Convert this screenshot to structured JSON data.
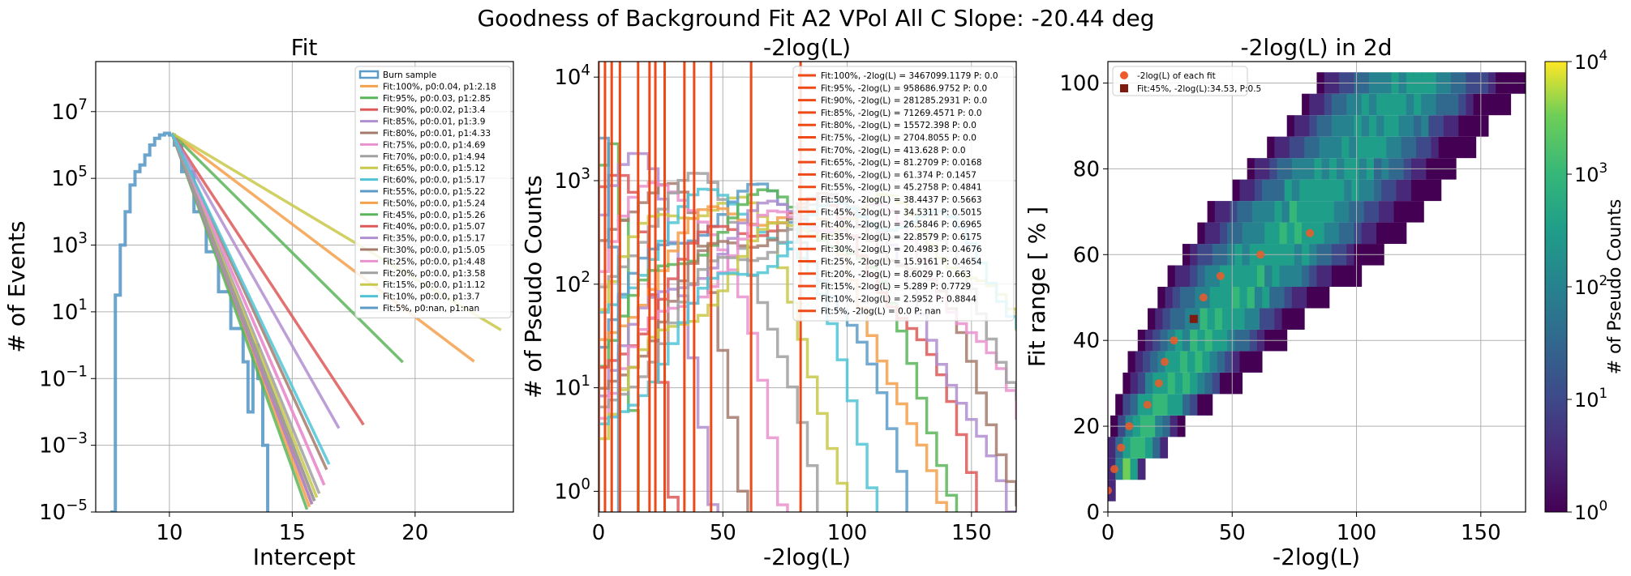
{
  "suptitle": "Goodness of Background Fit A2 VPol All C Slope: -20.44 deg",
  "colors": {
    "burn": "#5b9bc8",
    "cycle": [
      "#f5a04b",
      "#5ab55a",
      "#dd5858",
      "#b08ed0",
      "#a57b6c",
      "#ea92cf",
      "#a0a0a0",
      "#c8c84a",
      "#50c4d6",
      "#5b9bc8",
      "#f5a04b",
      "#5ab55a",
      "#dd5858",
      "#b08ed0",
      "#a57b6c",
      "#ea92cf",
      "#a0a0a0",
      "#c8c84a",
      "#50c4d6",
      "#5b9bc8"
    ],
    "fit_line": "#ee4a18",
    "scatter": "#f05a28",
    "highlight": "#7f1a10"
  },
  "chart_data": [
    {
      "type": "line",
      "title": "Fit",
      "xlabel": "Intercept",
      "ylabel": "# of Events",
      "xlim": [
        7,
        24
      ],
      "ylim_log10": [
        -5,
        8.5
      ],
      "yscale": "log",
      "grid": true,
      "xticks": [
        "10",
        "15",
        "20"
      ],
      "xtick_values": [
        10,
        15,
        20
      ],
      "yticks": [
        "10^-5",
        "10^-3",
        "10^-1",
        "10^1",
        "10^3",
        "10^5",
        "10^7"
      ],
      "ytick_values": [
        -5,
        -3,
        -1,
        1,
        3,
        5,
        7
      ],
      "legend_position": "top-right",
      "burn_sample": {
        "name": "Burn sample",
        "x": [
          7.6,
          7.8,
          8.0,
          8.2,
          8.4,
          8.6,
          8.8,
          9.0,
          9.2,
          9.4,
          9.6,
          9.8,
          10.0,
          10.2,
          10.5,
          11.0,
          11.5,
          12.0,
          12.5,
          13.0,
          13.2,
          13.4,
          13.6,
          13.8,
          14.0
        ],
        "log10_y": [
          -5,
          1.5,
          3.0,
          4.0,
          4.8,
          5.2,
          5.4,
          5.7,
          6.0,
          6.2,
          6.3,
          6.35,
          6.3,
          6.0,
          5.2,
          4.0,
          2.8,
          1.6,
          0.5,
          -0.5,
          -2.0,
          0.0,
          -1.0,
          -3.0,
          -5
        ]
      },
      "fits": [
        {
          "name": "Fit:100%, p0:0.04, p1:2.18",
          "slope": -0.556,
          "end_x": 22.4
        },
        {
          "name": "Fit:95%, p0:0.03, p1:2.85",
          "slope": -0.73,
          "end_x": 19.5
        },
        {
          "name": "Fit:90%, p0:0.02, p1:3.4",
          "slope": -1.12,
          "end_x": 17.9
        },
        {
          "name": "Fit:85%, p0:0.01, p1:3.9",
          "slope": -1.3,
          "end_x": 16.9
        },
        {
          "name": "Fit:80%, p0:0.01, p1:4.33",
          "slope": -1.6,
          "end_x": 16.4
        },
        {
          "name": "Fit:75%, p0:0.0, p1:4.69",
          "slope": -1.7,
          "end_x": 16.3
        },
        {
          "name": "Fit:70%, p0:0.0, p1:4.94",
          "slope": -1.8,
          "end_x": 16.1
        },
        {
          "name": "Fit:65%, p0:0.0, p1:5.12",
          "slope": -1.85,
          "end_x": 16.0
        },
        {
          "name": "Fit:60%, p0:0.0, p1:5.17",
          "slope": -1.9,
          "end_x": 15.9
        },
        {
          "name": "Fit:55%, p0:0.0, p1:5.22",
          "slope": -1.95,
          "end_x": 15.8
        },
        {
          "name": "Fit:50%, p0:0.0, p1:5.24",
          "slope": -2.0,
          "end_x": 15.7
        },
        {
          "name": "Fit:45%, p0:0.0, p1:5.26",
          "slope": -2.05,
          "end_x": 15.6
        },
        {
          "name": "Fit:40%, p0:0.0, p1:5.07",
          "slope": -1.95,
          "end_x": 15.8
        },
        {
          "name": "Fit:35%, p0:0.0, p1:5.17",
          "slope": -1.95,
          "end_x": 15.8
        },
        {
          "name": "Fit:30%, p0:0.0, p1:5.05",
          "slope": -1.9,
          "end_x": 15.9
        },
        {
          "name": "Fit:25%, p0:0.0, p1:4.48",
          "slope": -1.7,
          "end_x": 16.3
        },
        {
          "name": "Fit:20%, p0:0.0, p1:3.58",
          "slope": -1.9,
          "end_x": 15.9
        },
        {
          "name": "Fit:15%, p0:0.0, p1:1.12",
          "slope": -0.44,
          "end_x": 23.5
        },
        {
          "name": "Fit:10%, p0:0.0, p1:3.7",
          "slope": -1.55,
          "end_x": 16.5
        },
        {
          "name": "Fit:5%, p0:nan, p1:nan",
          "slope": null,
          "end_x": null
        }
      ]
    },
    {
      "type": "line",
      "title": "-2log(L)",
      "xlabel": "-2log(L)",
      "ylabel": "# of Pseudo Counts",
      "xlim": [
        0,
        168
      ],
      "ylim_log10": [
        -0.2,
        4.15
      ],
      "yscale": "log",
      "grid": true,
      "xticks": [
        "0",
        "50",
        "100",
        "150"
      ],
      "xtick_values": [
        0,
        50,
        100,
        150
      ],
      "yticks": [
        "10^0",
        "10^1",
        "10^2",
        "10^3",
        "10^4"
      ],
      "ytick_values": [
        0,
        1,
        2,
        3,
        4
      ],
      "legend_position": "top-right",
      "fit_values": [
        3467099.1179,
        958686.9752,
        281285.2931,
        71269.4571,
        15572.398,
        2704.8055,
        413.628,
        81.2709,
        61.374,
        45.2758,
        38.4437,
        34.5311,
        26.5846,
        22.8579,
        20.4983,
        15.9161,
        8.6029,
        5.289,
        2.5952,
        0.0
      ],
      "fits": [
        {
          "name": "Fit:100%, -2log(L) = 3467099.1179 P: 0.0"
        },
        {
          "name": "Fit:95%, -2log(L) = 958686.9752 P: 0.0"
        },
        {
          "name": "Fit:90%, -2log(L) = 281285.2931 P: 0.0"
        },
        {
          "name": "Fit:85%, -2log(L) = 71269.4571 P: 0.0"
        },
        {
          "name": "Fit:80%, -2log(L) = 15572.398 P: 0.0"
        },
        {
          "name": "Fit:75%, -2log(L) = 2704.8055 P: 0.0"
        },
        {
          "name": "Fit:70%, -2log(L) = 413.628 P: 0.0"
        },
        {
          "name": "Fit:65%, -2log(L) = 81.2709 P: 0.0168"
        },
        {
          "name": "Fit:60%, -2log(L) = 61.374 P: 0.1457"
        },
        {
          "name": "Fit:55%, -2log(L) = 45.2758 P: 0.4841"
        },
        {
          "name": "Fit:50%, -2log(L) = 38.4437 P: 0.5663"
        },
        {
          "name": "Fit:45%, -2log(L) = 34.5311 P: 0.5015"
        },
        {
          "name": "Fit:40%, -2log(L) = 26.5846 P: 0.6965"
        },
        {
          "name": "Fit:35%, -2log(L) = 22.8579 P: 0.6175"
        },
        {
          "name": "Fit:30%, -2log(L) = 20.4983 P: 0.4676"
        },
        {
          "name": "Fit:25%, -2log(L) = 15.9161 P: 0.4654"
        },
        {
          "name": "Fit:20%, -2log(L) = 8.6029 P: 0.663"
        },
        {
          "name": "Fit:15%, -2log(L) = 5.289 P: 0.7729"
        },
        {
          "name": "Fit:10%, -2log(L) = 2.5952 P: 0.8844"
        },
        {
          "name": "Fit:5%, -2log(L) = 0.0 P: nan"
        }
      ],
      "pseudo_peaks": [
        {
          "log10_max": 3.3,
          "center": 3,
          "width": 6
        },
        {
          "log10_max": 3.2,
          "center": 8,
          "width": 12
        },
        {
          "log10_max": 3.1,
          "center": 15,
          "width": 18
        },
        {
          "log10_max": 3.0,
          "center": 22,
          "width": 22
        },
        {
          "log10_max": 2.95,
          "center": 30,
          "width": 26
        },
        {
          "log10_max": 2.9,
          "center": 38,
          "width": 30
        },
        {
          "log10_max": 2.85,
          "center": 45,
          "width": 34
        },
        {
          "log10_max": 2.8,
          "center": 52,
          "width": 38
        },
        {
          "log10_max": 2.8,
          "center": 60,
          "width": 40
        },
        {
          "log10_max": 2.75,
          "center": 66,
          "width": 44
        },
        {
          "log10_max": 2.75,
          "center": 72,
          "width": 46
        },
        {
          "log10_max": 2.7,
          "center": 78,
          "width": 48
        },
        {
          "log10_max": 2.7,
          "center": 84,
          "width": 50
        },
        {
          "log10_max": 2.7,
          "center": 90,
          "width": 52
        },
        {
          "log10_max": 2.7,
          "center": 96,
          "width": 54
        },
        {
          "log10_max": 2.7,
          "center": 102,
          "width": 56
        },
        {
          "log10_max": 2.7,
          "center": 108,
          "width": 58
        },
        {
          "log10_max": 2.7,
          "center": 114,
          "width": 60
        },
        {
          "log10_max": 3.6,
          "center": 1,
          "width": 3
        }
      ]
    },
    {
      "type": "heatmap",
      "title": "-2log(L) in 2d",
      "xlabel": "-2log(L)",
      "ylabel": "Fit range [ % ]",
      "xlim": [
        0,
        168
      ],
      "ylim": [
        0,
        105
      ],
      "grid": true,
      "xticks": [
        "0",
        "50",
        "100",
        "150"
      ],
      "xtick_values": [
        0,
        50,
        100,
        150
      ],
      "yticks": [
        "0",
        "20",
        "40",
        "60",
        "80",
        "100"
      ],
      "ytick_values": [
        0,
        20,
        40,
        60,
        80,
        100
      ],
      "colorbar": {
        "label": "# of Pseudo Counts",
        "scale": "log",
        "range_log10": [
          0,
          4
        ],
        "ticks": [
          "10^0",
          "10^1",
          "10^2",
          "10^3",
          "10^4"
        ],
        "tick_values": [
          0,
          1,
          2,
          3,
          4
        ]
      },
      "rows": [
        {
          "y": 5,
          "x0": 0,
          "x1": 2,
          "log10_peak": 3.6
        },
        {
          "y": 10,
          "x0": 0,
          "x1": 14,
          "log10_peak": 3.0
        },
        {
          "y": 15,
          "x0": 0,
          "x1": 24,
          "log10_peak": 2.8
        },
        {
          "y": 20,
          "x0": 1,
          "x1": 30,
          "log10_peak": 2.7
        },
        {
          "y": 25,
          "x0": 3,
          "x1": 42,
          "log10_peak": 2.6
        },
        {
          "y": 30,
          "x0": 6,
          "x1": 52,
          "log10_peak": 2.5
        },
        {
          "y": 35,
          "x0": 8,
          "x1": 60,
          "log10_peak": 2.5
        },
        {
          "y": 40,
          "x0": 12,
          "x1": 70,
          "log10_peak": 2.4
        },
        {
          "y": 45,
          "x0": 16,
          "x1": 78,
          "log10_peak": 2.4
        },
        {
          "y": 50,
          "x0": 20,
          "x1": 88,
          "log10_peak": 2.4
        },
        {
          "y": 55,
          "x0": 24,
          "x1": 100,
          "log10_peak": 2.3
        },
        {
          "y": 60,
          "x0": 30,
          "x1": 110,
          "log10_peak": 2.3
        },
        {
          "y": 65,
          "x0": 36,
          "x1": 118,
          "log10_peak": 2.3
        },
        {
          "y": 70,
          "x0": 40,
          "x1": 126,
          "log10_peak": 2.3
        },
        {
          "y": 75,
          "x0": 50,
          "x1": 132,
          "log10_peak": 2.3
        },
        {
          "y": 80,
          "x0": 56,
          "x1": 138,
          "log10_peak": 2.2
        },
        {
          "y": 85,
          "x0": 64,
          "x1": 146,
          "log10_peak": 2.2
        },
        {
          "y": 90,
          "x0": 72,
          "x1": 152,
          "log10_peak": 2.2
        },
        {
          "y": 95,
          "x0": 78,
          "x1": 160,
          "log10_peak": 2.2
        },
        {
          "y": 100,
          "x0": 84,
          "x1": 168,
          "log10_peak": 2.2
        }
      ],
      "scatter": {
        "name": "-2log(L) of each fit",
        "x": [
          0.0,
          2.5952,
          5.289,
          8.6029,
          15.9161,
          20.4983,
          22.8579,
          26.5846,
          38.4437,
          45.2758,
          61.374,
          81.2709
        ],
        "y": [
          5,
          10,
          15,
          20,
          25,
          30,
          35,
          40,
          50,
          55,
          60,
          65
        ]
      },
      "highlight": {
        "name": "Fit:45%, -2log(L):34.53, P:0.5",
        "x": 34.5311,
        "y": 45
      },
      "legend_position": "top-left"
    }
  ]
}
